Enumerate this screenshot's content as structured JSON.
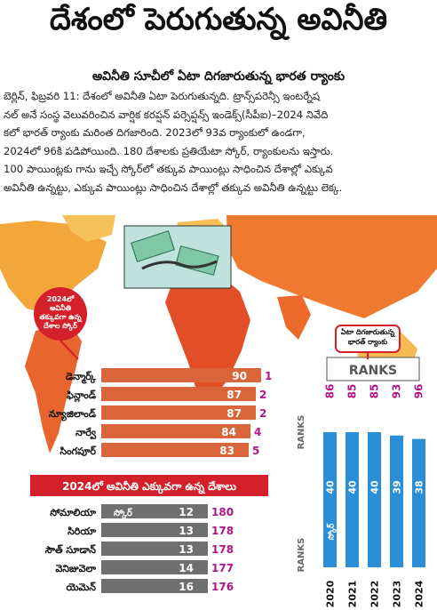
{
  "headline": "దేశంలో పెరుగుతున్న అవినీతి",
  "subheadline": "అవినీతి సూచీలో ఏటా దిగజారుతున్న భారత ర్యాంకు",
  "article": {
    "line1": "బెర్లిన్, ఫిబ్రవరి 11: దేశంలో అవినీతి ఏటా పెరుగుతున్నది. ట్రాన్స్‌పరెన్సీ ఇంటర్నేష",
    "line2": "నల్ అనే సంస్థ వెలువరించిన వార్షిక కరప్షన్ పర్సెప్షన్స్ ఇండెక్స్(సీపీఐ)–2024 నివేది",
    "line3": "కలో భారత్ ర్యాంకు మరింత దిగజారింది. 2023లో 93వ ర్యాంకులో ఉండగా,",
    "line4": "2024లో 96కి పడిపోయింది. 180 దేశాలకు ప్రతియేటా స్కోర్, ర్యాంకులను ఇస్తారు.",
    "line5": "100 పాయింట్లకు గాను ఇచ్చే స్కోర్‌లో తక్కువ పాయింట్లు సాధించిన దేశాల్లో ఎక్కువ",
    "line6": "అవినీతి ఉన్నట్టు, ఎక్కువ పాయింట్లు సాధించిన దేశాల్లో తక్కువ అవినీతి ఉన్నట్టు లెక్క."
  },
  "callout_low": "2024లో అవినీతి తక్కువగా ఉన్న దేశాల స్కోర్",
  "callout_india": "ఏటా దిగజారుతున్న భారత్ ర్యాంకు",
  "section_high_title": "2024లో అవినీతి ఎక్కువగా ఉన్న దేశాలు",
  "score_label": "స్కోర్",
  "ranks_label": "RANKS",
  "colors": {
    "orange": "#d9663a",
    "gray": "#6f6f6f",
    "blue": "#2a8fd6",
    "magenta": "#b0158a",
    "red": "#d3202a"
  },
  "chart_data": [
    {
      "type": "bar",
      "orientation": "horizontal",
      "categories": [
        "డెన్మార్క్",
        "ఫిన్లాండ్",
        "న్యూజిలాండ్",
        "నార్వే",
        "సింగపూర్"
      ],
      "series": [
        {
          "values": [
            90,
            87,
            87,
            84,
            83
          ]
        }
      ],
      "ranks": [
        1,
        2,
        2,
        4,
        5
      ],
      "xlim": [
        0,
        100
      ]
    },
    {
      "type": "bar",
      "orientation": "horizontal",
      "title": "2024లో అవినీతి ఎక్కువగా ఉన్న దేశాలు",
      "categories": [
        "సోమాలియా",
        "సిరియా",
        "సౌత్ సూడాన్",
        "వెనిజువెలా",
        "యెమెన్"
      ],
      "series": [
        {
          "values": [
            12,
            13,
            13,
            14,
            16
          ]
        }
      ],
      "ranks": [
        180,
        178,
        178,
        177,
        176
      ],
      "xlim": [
        0,
        100
      ]
    },
    {
      "type": "bar",
      "orientation": "vertical",
      "title": "ఏటా దిగజారుతున్న భారత్ ర్యాంకు",
      "categories": [
        "2020",
        "2021",
        "2022",
        "2023",
        "2024"
      ],
      "series": [
        {
          "values": [
            40,
            40,
            40,
            39,
            38
          ]
        }
      ],
      "ranks": [
        86,
        85,
        85,
        93,
        96
      ],
      "ylim": [
        0,
        100
      ]
    }
  ]
}
